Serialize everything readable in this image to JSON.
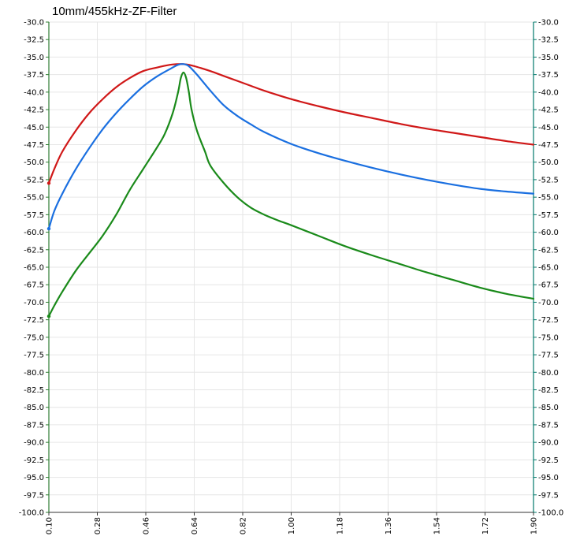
{
  "chart_data": {
    "type": "line",
    "title": "10mm/455kHz-ZF-Filter",
    "xlabel": "",
    "ylabel": "",
    "xlim": [
      0.1,
      1.9
    ],
    "ylim": [
      -100.0,
      -30.0
    ],
    "x_ticks": [
      "0.10",
      "0.28",
      "0.46",
      "0.64",
      "0.82",
      "1.00",
      "1.18",
      "1.36",
      "1.54",
      "1.72",
      "1.90"
    ],
    "y_ticks_left": [
      "-30.0",
      "-32.5",
      "-35.0",
      "-37.5",
      "-40.0",
      "-42.5",
      "-45.0",
      "-47.5",
      "-50.0",
      "-52.5",
      "-55.0",
      "-57.5",
      "-60.0",
      "-62.5",
      "-65.0",
      "-67.5",
      "-70.0",
      "-72.5",
      "-75.0",
      "-77.5",
      "-80.0",
      "-82.5",
      "-85.0",
      "-87.5",
      "-90.0",
      "-92.5",
      "-95.0",
      "-97.5",
      "-100.0"
    ],
    "y_ticks_right": [
      "-30.0",
      "-32.5",
      "-35.0",
      "-37.5",
      "-40.0",
      "-42.5",
      "-45.0",
      "-47.5",
      "-50.0",
      "-52.5",
      "-55.0",
      "-57.5",
      "-60.0",
      "-62.5",
      "-65.0",
      "-67.5",
      "-70.0",
      "-72.5",
      "-75.0",
      "-77.5",
      "-80.0",
      "-82.5",
      "-85.0",
      "-87.5",
      "-90.0",
      "-92.5",
      "-95.0",
      "-97.5",
      "-100.0"
    ],
    "grid": true,
    "legend": "none",
    "series": [
      {
        "color": "#d01818",
        "x": [
          0.1,
          0.12,
          0.15,
          0.2,
          0.25,
          0.3,
          0.35,
          0.4,
          0.45,
          0.5,
          0.55,
          0.58,
          0.6,
          0.62,
          0.65,
          0.7,
          0.75,
          0.8,
          0.85,
          0.9,
          1.0,
          1.1,
          1.2,
          1.3,
          1.4,
          1.5,
          1.6,
          1.7,
          1.8,
          1.9
        ],
        "y": [
          -53.0,
          -51.0,
          -48.5,
          -45.5,
          -43.0,
          -41.0,
          -39.3,
          -38.0,
          -37.0,
          -36.5,
          -36.1,
          -36.0,
          -36.0,
          -36.1,
          -36.4,
          -37.0,
          -37.7,
          -38.4,
          -39.1,
          -39.8,
          -41.0,
          -42.0,
          -42.9,
          -43.7,
          -44.5,
          -45.2,
          -45.8,
          -46.4,
          -47.0,
          -47.5
        ]
      },
      {
        "color": "#1a6fe0",
        "x": [
          0.1,
          0.12,
          0.15,
          0.2,
          0.25,
          0.3,
          0.35,
          0.4,
          0.45,
          0.5,
          0.55,
          0.58,
          0.6,
          0.62,
          0.65,
          0.7,
          0.75,
          0.8,
          0.85,
          0.9,
          1.0,
          1.1,
          1.2,
          1.3,
          1.4,
          1.5,
          1.6,
          1.7,
          1.8,
          1.9
        ],
        "y": [
          -59.5,
          -57.0,
          -54.5,
          -51.0,
          -48.0,
          -45.3,
          -43.0,
          -41.0,
          -39.2,
          -37.8,
          -36.7,
          -36.1,
          -36.0,
          -36.3,
          -37.5,
          -39.8,
          -41.9,
          -43.4,
          -44.6,
          -45.7,
          -47.4,
          -48.7,
          -49.8,
          -50.8,
          -51.7,
          -52.5,
          -53.2,
          -53.8,
          -54.2,
          -54.5
        ]
      },
      {
        "color": "#1a8a1a",
        "x": [
          0.1,
          0.12,
          0.15,
          0.2,
          0.25,
          0.3,
          0.35,
          0.4,
          0.45,
          0.5,
          0.53,
          0.56,
          0.58,
          0.59,
          0.6,
          0.61,
          0.62,
          0.63,
          0.65,
          0.68,
          0.7,
          0.75,
          0.8,
          0.85,
          0.9,
          0.95,
          1.0,
          1.1,
          1.2,
          1.3,
          1.4,
          1.5,
          1.6,
          1.7,
          1.8,
          1.9
        ],
        "y": [
          -72.0,
          -70.5,
          -68.5,
          -65.5,
          -63.0,
          -60.5,
          -57.5,
          -54.0,
          -51.0,
          -48.0,
          -46.0,
          -43.0,
          -40.0,
          -38.0,
          -37.2,
          -38.0,
          -40.0,
          -42.5,
          -45.5,
          -48.5,
          -50.5,
          -53.0,
          -55.0,
          -56.5,
          -57.5,
          -58.3,
          -59.0,
          -60.5,
          -62.0,
          -63.3,
          -64.5,
          -65.7,
          -66.8,
          -67.9,
          -68.8,
          -69.5
        ]
      }
    ]
  }
}
